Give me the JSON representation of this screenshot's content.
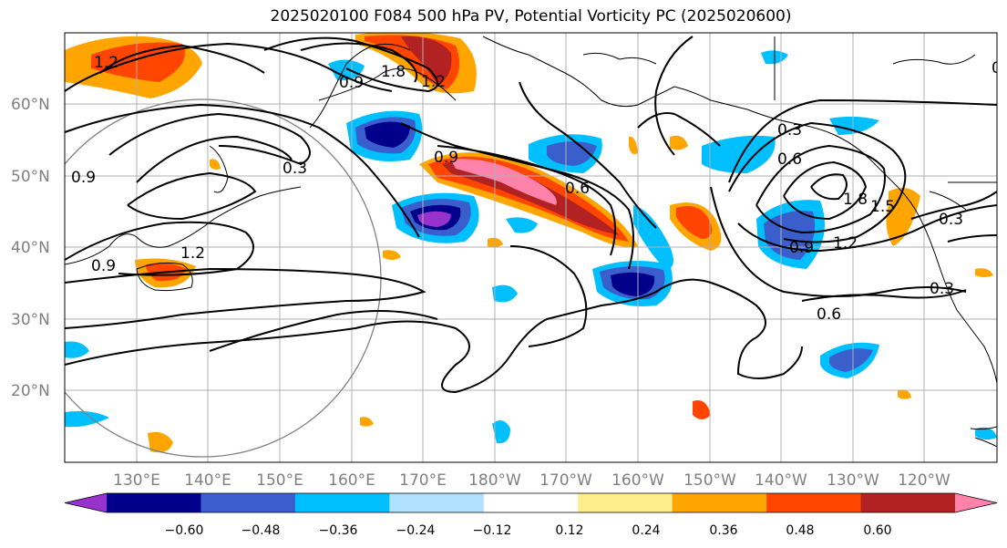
{
  "title": "2025020100 F084 500 hPa PV, Potential Vorticity PC (2025020600)",
  "map": {
    "lat_labels": [
      "60°N",
      "50°N",
      "40°N",
      "30°N",
      "20°N"
    ],
    "lon_labels": [
      "130°E",
      "140°E",
      "150°E",
      "160°E",
      "170°E",
      "180°W",
      "170°W",
      "160°W",
      "150°W",
      "140°W",
      "130°W",
      "120°W"
    ],
    "contour_labels": [
      "1.2",
      "1.8",
      "1.2",
      "0.9",
      "0.9",
      "0.3",
      "0.9",
      "0.6",
      "0.6",
      "1.2",
      "0.3",
      "0.9",
      "1.2",
      "1.8",
      "1.5",
      "0.3",
      "0.9",
      "0.6",
      "0.3",
      "0.6"
    ]
  },
  "colorbar": {
    "colors": [
      "#9932cc",
      "#00008b",
      "#3a5fcd",
      "#00bfff",
      "#b0e2ff",
      "#ffffff",
      "#ffec8b",
      "#ffa500",
      "#ff4500",
      "#b22222",
      "#ff82ab"
    ],
    "tick_labels": [
      "−0.60",
      "−0.48",
      "−0.36",
      "−0.24",
      "−0.12",
      "0.12",
      "0.24",
      "0.36",
      "0.48",
      "0.60"
    ]
  }
}
